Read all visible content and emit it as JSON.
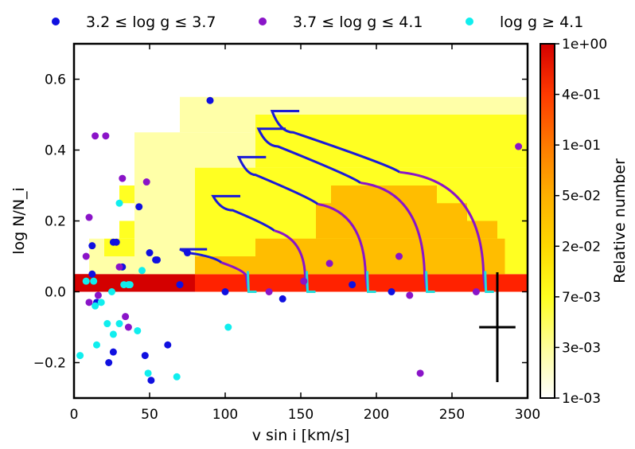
{
  "chart_data": {
    "type": "scatter",
    "xlabel": "v sin i [km/s]",
    "ylabel": "log N/N_i",
    "xlim": [
      0,
      300
    ],
    "ylim": [
      -0.3,
      0.7
    ],
    "xticks": [
      0,
      50,
      100,
      150,
      200,
      250,
      300
    ],
    "yticks": [
      -0.2,
      0.0,
      0.2,
      0.4,
      0.6
    ],
    "xtick_labels": [
      "0",
      "50",
      "100",
      "150",
      "200",
      "250",
      "300"
    ],
    "ytick_labels": [
      "−0.2",
      "0.0",
      "0.2",
      "0.4",
      "0.6"
    ],
    "legend": {
      "position": "top",
      "entries": [
        {
          "label": "3.2 ≤ log g ≤ 3.7",
          "color": "#1010e0"
        },
        {
          "label": "3.7 ≤ log g ≤ 4.1",
          "color": "#8a14c8"
        },
        {
          "label": "log g ≥ 4.1",
          "color": "#10eeee"
        }
      ]
    },
    "colorbar": {
      "label": "Relative number",
      "ticks": [
        "1e+00",
        "4e-01",
        "1e-01",
        "5e-02",
        "2e-02",
        "7e-03",
        "3e-03",
        "1e-03"
      ],
      "colors": [
        "#d40000",
        "#ff3a00",
        "#ff7a00",
        "#ffb000",
        "#ffd800",
        "#ffff20",
        "#ffff9a",
        "#ffffff"
      ]
    },
    "heatmap_colors": {
      "lightest": "#ffffa8",
      "light": "#ffff22",
      "mid": "#ffbd00",
      "dark": "#ff2200",
      "darkest": "#d40000"
    },
    "heatmap_cells": [
      {
        "x0": 0,
        "x1": 80,
        "y0": 0.0,
        "y1": 0.05,
        "level": "darkest"
      },
      {
        "x0": 80,
        "x1": 300,
        "y0": 0.0,
        "y1": 0.05,
        "level": "dark"
      },
      {
        "x0": 10,
        "x1": 80,
        "y0": 0.05,
        "y1": 0.1,
        "level": "lightest"
      },
      {
        "x0": 10,
        "x1": 20,
        "y0": 0.1,
        "y1": 0.15,
        "level": "lightest"
      },
      {
        "x0": 20,
        "x1": 40,
        "y0": 0.1,
        "y1": 0.15,
        "level": "light"
      },
      {
        "x0": 30,
        "x1": 40,
        "y0": 0.15,
        "y1": 0.2,
        "level": "light"
      },
      {
        "x0": 30,
        "x1": 40,
        "y0": 0.25,
        "y1": 0.3,
        "level": "light"
      },
      {
        "x0": 40,
        "x1": 300,
        "y0": 0.05,
        "y1": 0.45,
        "level": "lightest"
      },
      {
        "x0": 70,
        "x1": 300,
        "y0": 0.45,
        "y1": 0.55,
        "level": "lightest"
      },
      {
        "x0": 80,
        "x1": 300,
        "y0": 0.05,
        "y1": 0.35,
        "level": "light"
      },
      {
        "x0": 120,
        "x1": 300,
        "y0": 0.35,
        "y1": 0.5,
        "level": "light"
      },
      {
        "x0": 80,
        "x1": 285,
        "y0": 0.05,
        "y1": 0.1,
        "level": "mid"
      },
      {
        "x0": 120,
        "x1": 285,
        "y0": 0.1,
        "y1": 0.15,
        "level": "mid"
      },
      {
        "x0": 170,
        "x1": 240,
        "y0": 0.15,
        "y1": 0.3,
        "level": "mid"
      },
      {
        "x0": 240,
        "x1": 260,
        "y0": 0.15,
        "y1": 0.25,
        "level": "mid"
      },
      {
        "x0": 260,
        "x1": 280,
        "y0": 0.15,
        "y1": 0.2,
        "level": "mid"
      },
      {
        "x0": 160,
        "x1": 170,
        "y0": 0.15,
        "y1": 0.25,
        "level": "mid"
      }
    ],
    "series": [
      {
        "name": "3.2 ≤ log g ≤ 3.7",
        "color": "#1010e0",
        "points": [
          [
            90,
            0.54
          ],
          [
            43,
            0.24
          ],
          [
            12,
            0.13
          ],
          [
            26,
            0.14
          ],
          [
            28,
            0.14
          ],
          [
            50,
            0.11
          ],
          [
            54,
            0.09
          ],
          [
            55,
            0.09
          ],
          [
            32,
            0.07
          ],
          [
            75,
            0.11
          ],
          [
            12,
            0.05
          ],
          [
            70,
            0.02
          ],
          [
            100,
            0.0
          ],
          [
            138,
            -0.02
          ],
          [
            184,
            0.02
          ],
          [
            210,
            0.0
          ],
          [
            62,
            -0.15
          ],
          [
            47,
            -0.18
          ],
          [
            26,
            -0.17
          ],
          [
            23,
            -0.2
          ],
          [
            51,
            -0.25
          ],
          [
            15,
            -0.03
          ]
        ]
      },
      {
        "name": "3.7 ≤ log g ≤ 4.1",
        "color": "#8a14c8",
        "points": [
          [
            14,
            0.44
          ],
          [
            21,
            0.44
          ],
          [
            32,
            0.32
          ],
          [
            48,
            0.31
          ],
          [
            10,
            0.21
          ],
          [
            8,
            0.1
          ],
          [
            30,
            0.07
          ],
          [
            10,
            -0.03
          ],
          [
            16,
            -0.01
          ],
          [
            34,
            -0.07
          ],
          [
            36,
            -0.1
          ],
          [
            129,
            0.0
          ],
          [
            152,
            0.03
          ],
          [
            169,
            0.08
          ],
          [
            215,
            0.1
          ],
          [
            222,
            -0.01
          ],
          [
            229,
            -0.23
          ],
          [
            266,
            0.0
          ],
          [
            294,
            0.41
          ]
        ]
      },
      {
        "name": "log g ≥ 4.1",
        "color": "#10eeee",
        "points": [
          [
            30,
            0.25
          ],
          [
            45,
            0.06
          ],
          [
            8,
            0.03
          ],
          [
            13,
            0.03
          ],
          [
            33,
            0.02
          ],
          [
            36,
            0.02
          ],
          [
            37,
            0.02
          ],
          [
            25,
            0.0
          ],
          [
            14,
            -0.04
          ],
          [
            18,
            -0.03
          ],
          [
            22,
            -0.09
          ],
          [
            30,
            -0.09
          ],
          [
            26,
            -0.12
          ],
          [
            42,
            -0.11
          ],
          [
            15,
            -0.15
          ],
          [
            102,
            -0.1
          ],
          [
            4,
            -0.18
          ],
          [
            49,
            -0.23
          ],
          [
            68,
            -0.24
          ]
        ]
      }
    ],
    "tracks": [
      {
        "start": [
          70,
          0.12
        ],
        "turn": [
          75,
          0.11
        ],
        "end": [
          116,
          0.0
        ]
      },
      {
        "start": [
          92,
          0.27
        ],
        "turn": [
          105,
          0.23
        ],
        "end": [
          155,
          0.0
        ]
      },
      {
        "start": [
          109,
          0.38
        ],
        "turn": [
          120,
          0.33
        ],
        "end": [
          195,
          0.0
        ]
      },
      {
        "start": [
          122,
          0.46
        ],
        "turn": [
          135,
          0.41
        ],
        "end": [
          234,
          0.0
        ]
      },
      {
        "start": [
          131,
          0.51
        ],
        "turn": [
          145,
          0.45
        ],
        "end": [
          273,
          0.0
        ]
      }
    ],
    "error_bar": {
      "x": 280,
      "y": -0.1,
      "xerr": 12,
      "yerr": 0.155
    }
  }
}
